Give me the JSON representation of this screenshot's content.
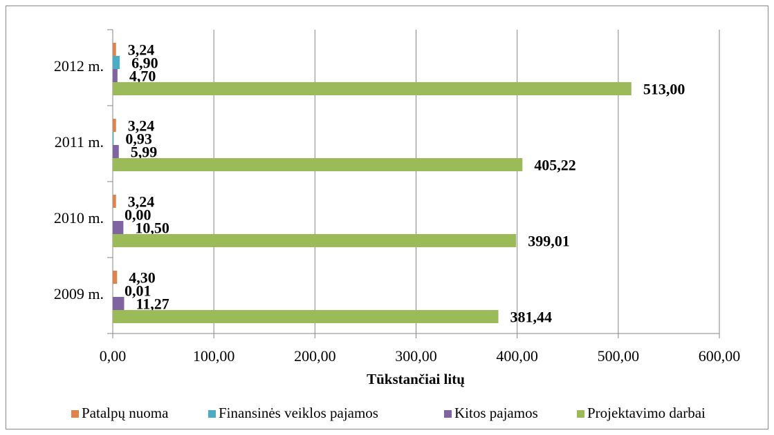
{
  "chart_data": {
    "type": "hbar",
    "x_label": "Tūkstančiai litų",
    "categories": [
      "2009 m.",
      "2010 m.",
      "2011 m.",
      "2012 m."
    ],
    "series": [
      {
        "name": "Patalpų nuoma",
        "color": "#e0834a",
        "values": [
          4.3,
          3.24,
          3.24,
          3.24
        ],
        "value_labels": [
          "4,30",
          "3,24",
          "3,24",
          "3,24"
        ]
      },
      {
        "name": "Finansinės veiklos pajamos",
        "color": "#4bacc6",
        "values": [
          0.01,
          0.0,
          0.93,
          6.9
        ],
        "value_labels": [
          "0,01",
          "0,00",
          "0,93",
          "6,90"
        ]
      },
      {
        "name": "Kitos pajamos",
        "color": "#8064a2",
        "values": [
          11.27,
          10.5,
          5.99,
          4.7
        ],
        "value_labels": [
          "11,27",
          "10,50",
          "5,99",
          "4,70"
        ]
      },
      {
        "name": "Projektavimo darbai",
        "color": "#9bbb59",
        "values": [
          381.44,
          399.01,
          405.22,
          513.0
        ],
        "value_labels": [
          "381,44",
          "399,01",
          "405,22",
          "513,00"
        ]
      }
    ],
    "xlim": [
      0,
      600
    ],
    "xticks": [
      {
        "value": 0,
        "label": "0,00"
      },
      {
        "value": 100,
        "label": "100,00"
      },
      {
        "value": 200,
        "label": "200,00"
      },
      {
        "value": 300,
        "label": "300,00"
      },
      {
        "value": 400,
        "label": "400,00"
      },
      {
        "value": 500,
        "label": "500,00"
      },
      {
        "value": 600,
        "label": "600,00"
      }
    ],
    "grid": true,
    "legend": "bottom"
  }
}
